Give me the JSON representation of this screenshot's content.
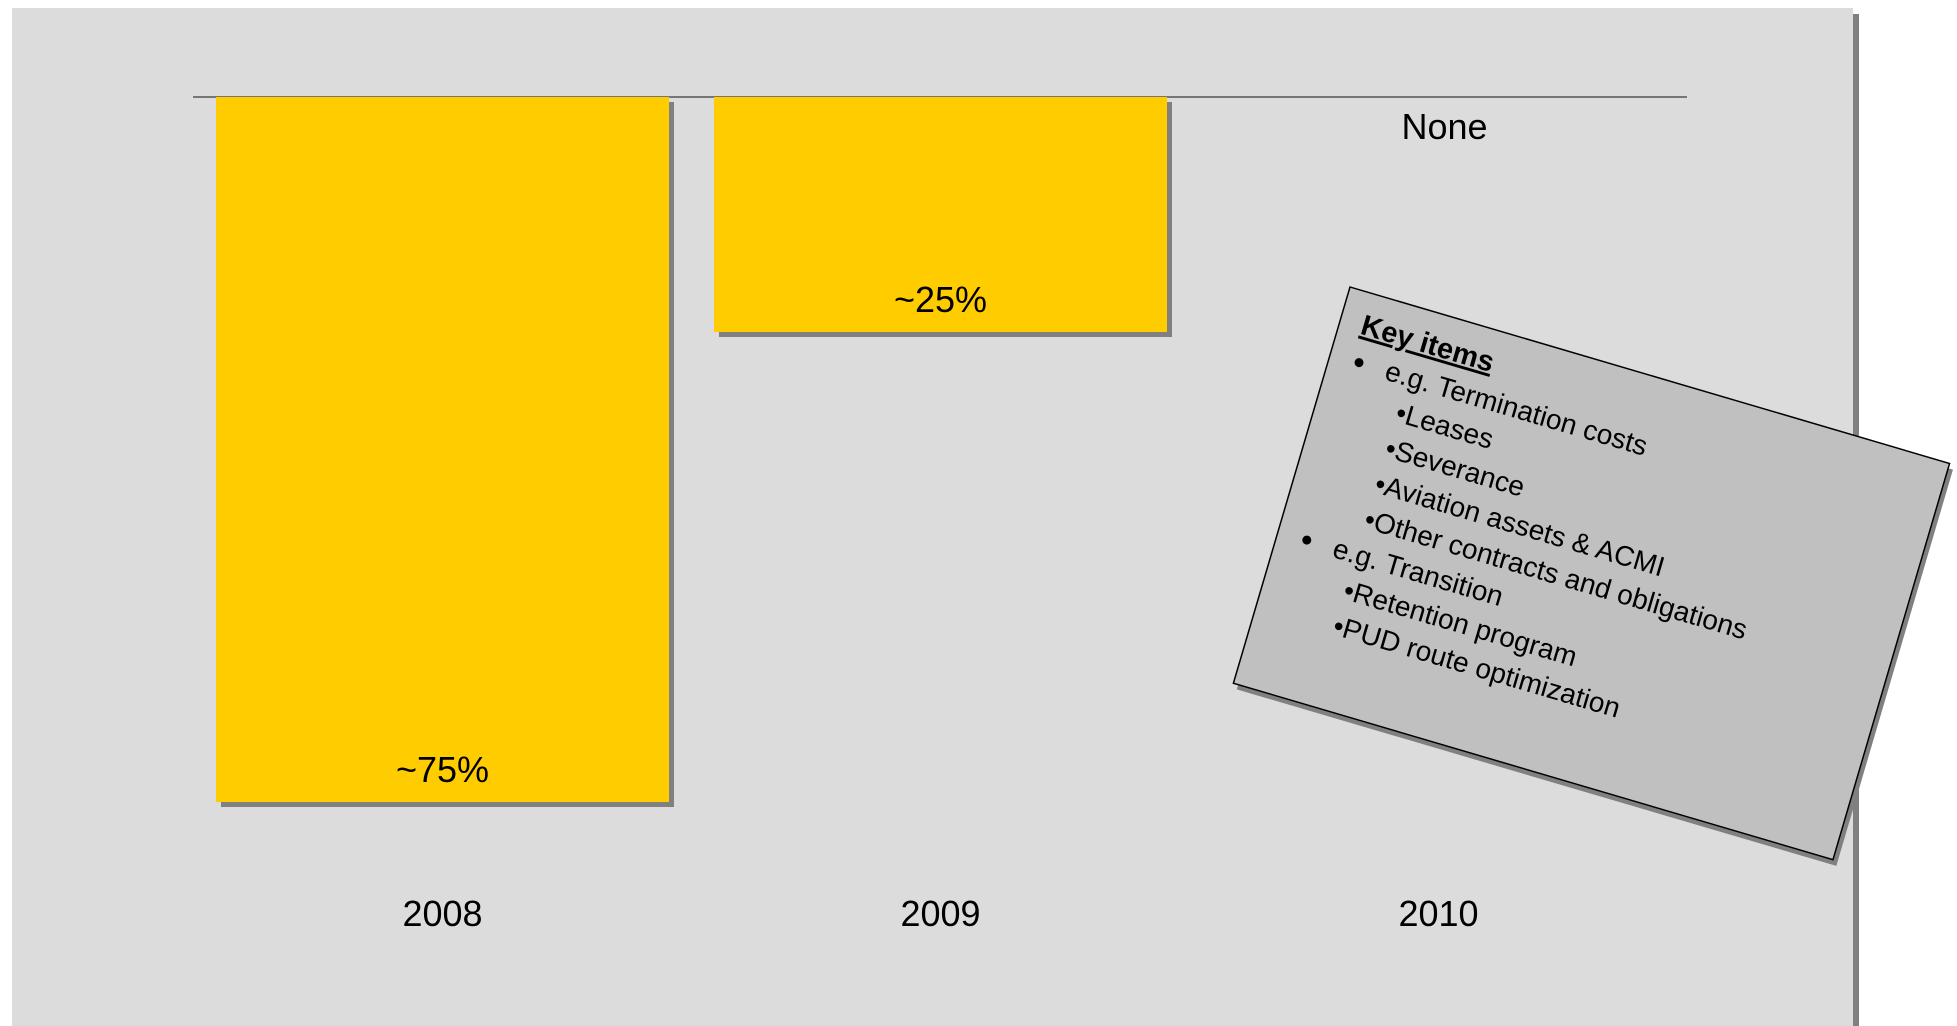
{
  "chart_data": {
    "type": "bar",
    "categories": [
      "2008",
      "2009",
      "2010"
    ],
    "values": [
      75,
      25,
      null
    ],
    "value_labels": [
      "~75%",
      "~25%",
      "None"
    ],
    "color": "#ffcc00",
    "annotation": {
      "title": "Key items",
      "items": [
        {
          "text": "e.g. Termination costs",
          "subitems": [
            "•Leases",
            "•Severance",
            "•Aviation assets & ACMI",
            "•Other contracts and obligations"
          ]
        },
        {
          "text": "e.g. Transition",
          "subitems": [
            "•Retention program",
            "•PUD route optimization"
          ]
        }
      ]
    }
  }
}
